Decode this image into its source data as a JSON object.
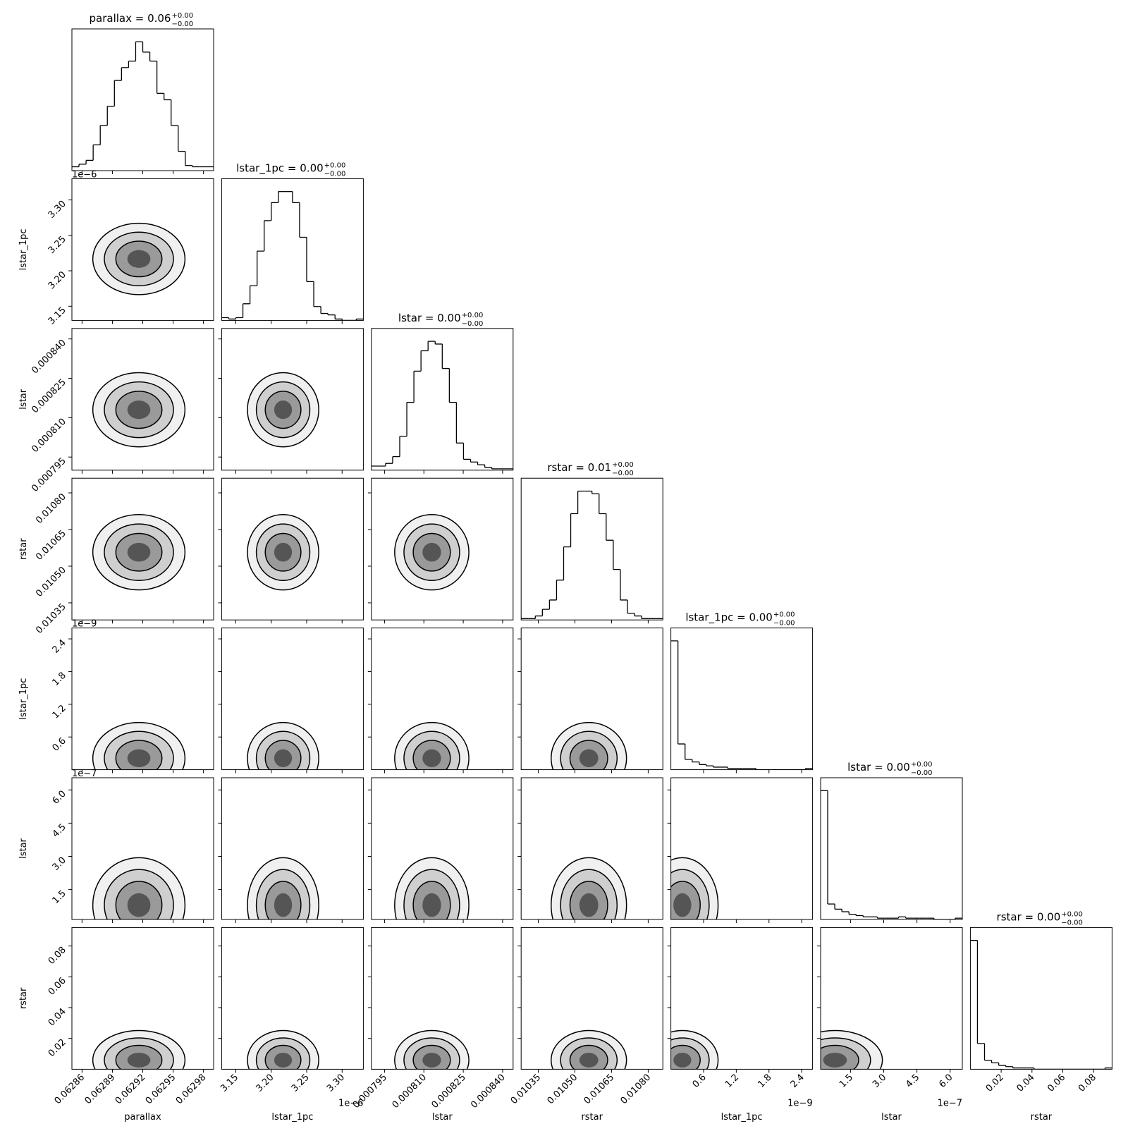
{
  "chart_data": {
    "type": "corner",
    "params": [
      {
        "title": "parallax = 0.06",
        "plus": "+0.00",
        "minus": "−0.00",
        "label": "parallax",
        "xlim": [
          0.06285,
          0.06299
        ],
        "ticks": [
          0.06286,
          0.06289,
          0.06292,
          0.06295,
          0.06298
        ],
        "bins": [
          0.06285,
          0.062857,
          0.062864,
          0.062871,
          0.062878,
          0.062885,
          0.062892,
          0.062899,
          0.062906,
          0.062913,
          0.06292,
          0.062927,
          0.062934,
          0.062941,
          0.062948,
          0.062955,
          0.062962,
          0.062969,
          0.062976,
          0.062983,
          0.06299
        ],
        "counts": [
          3,
          5,
          8,
          20,
          35,
          50,
          70,
          80,
          85,
          100,
          92,
          85,
          60,
          55,
          35,
          15,
          4,
          3,
          3,
          3
        ]
      },
      {
        "title": "lstar_1pc = 0.00",
        "plus": "+0.00",
        "minus": "−0.00",
        "label": "lstar_1pc",
        "offset": "1e−6",
        "xlim": [
          3.13,
          3.33
        ],
        "ticks": [
          3.15,
          {
            "value": 3.2,
            "label": "3.20"
          },
          3.25,
          {
            "value": 3.3,
            "label": "3.30"
          }
        ],
        "bins": [
          3.13,
          3.14,
          3.15,
          3.16,
          3.17,
          3.18,
          3.19,
          3.2,
          3.21,
          3.22,
          3.23,
          3.24,
          3.25,
          3.26,
          3.27,
          3.28,
          3.29,
          3.3,
          3.31,
          3.32,
          3.33
        ],
        "counts": [
          2,
          1,
          2,
          12,
          25,
          50,
          72,
          85,
          93,
          93,
          85,
          60,
          28,
          10,
          5,
          4,
          1,
          0,
          0,
          1
        ]
      },
      {
        "title": "lstar = 0.00",
        "plus": "+0.00",
        "minus": "−0.00",
        "label": "lstar",
        "xlim": [
          0.00079,
          0.000844
        ],
        "ticks": [
          0.000795,
          {
            "value": 0.00081,
            "label": "0.000810"
          },
          0.000825,
          {
            "value": 0.00084,
            "label": "0.000840"
          }
        ],
        "bins": [
          0.00079,
          0.0007927,
          0.0007954,
          0.0007981,
          0.0008008,
          0.0008035,
          0.0008062,
          0.0008089,
          0.0008116,
          0.0008143,
          0.000817,
          0.0008197,
          0.0008224,
          0.0008251,
          0.0008278,
          0.0008305,
          0.0008332,
          0.0008359,
          0.0008386,
          0.0008413,
          0.000844
        ],
        "counts": [
          3,
          3,
          5,
          10,
          25,
          50,
          73,
          88,
          95,
          93,
          75,
          50,
          20,
          8,
          6,
          4,
          2,
          1,
          1,
          1
        ]
      },
      {
        "title": "rstar = 0.01",
        "plus": "+0.00",
        "minus": "−0.00",
        "label": "rstar",
        "xlim": [
          0.01028,
          0.01086
        ],
        "ticks": [
          0.01035,
          {
            "value": 0.0105,
            "label": "0.01050"
          },
          0.01065,
          {
            "value": 0.0108,
            "label": "0.01080"
          }
        ],
        "bins": [
          0.01028,
          0.010309,
          0.010338,
          0.010367,
          0.010396,
          0.010425,
          0.010454,
          0.010483,
          0.010512,
          0.010541,
          0.01057,
          0.010599,
          0.010628,
          0.010657,
          0.010686,
          0.010715,
          0.010744,
          0.010773,
          0.010802,
          0.010831,
          0.01086
        ],
        "counts": [
          1,
          1,
          3,
          8,
          15,
          30,
          55,
          80,
          97,
          97,
          95,
          80,
          60,
          38,
          15,
          5,
          3,
          1,
          1,
          1
        ]
      },
      {
        "title": "lstar_1pc = 0.00",
        "plus": "+0.00",
        "minus": "−0.00",
        "label": "lstar_1pc",
        "offset": "1e−9",
        "xlim": [
          0,
          2.6
        ],
        "ticks": [
          0.6,
          1.2,
          1.8,
          2.4
        ],
        "bins": [
          0,
          0.13,
          0.26,
          0.39,
          0.52,
          0.65,
          0.78,
          0.91,
          1.04,
          1.17,
          1.3,
          1.43,
          1.56,
          1.69,
          1.82,
          1.95,
          2.08,
          2.21,
          2.34,
          2.47,
          2.6
        ],
        "counts": [
          100,
          20,
          8,
          6,
          4,
          3,
          2,
          2,
          1,
          1,
          1,
          1,
          0,
          0,
          0,
          0,
          0,
          0,
          0,
          1
        ]
      },
      {
        "title": "lstar = 0.00",
        "plus": "+0.00",
        "minus": "−0.00",
        "label": "lstar",
        "offset": "1e−7",
        "xlim": [
          0.15,
          6.55
        ],
        "ticks": [
          1.5,
          {
            "value": 3,
            "label": "3.0"
          },
          4.5,
          {
            "value": 6,
            "label": "6.0"
          }
        ],
        "bins": [
          0.15,
          0.47,
          0.79,
          1.11,
          1.43,
          1.75,
          2.07,
          2.39,
          2.71,
          3.03,
          3.35,
          3.67,
          3.99,
          4.31,
          4.63,
          4.95,
          5.27,
          5.59,
          5.91,
          6.23,
          6.55
        ],
        "counts": [
          100,
          12,
          8,
          6,
          4,
          3,
          2,
          2,
          1,
          1,
          1,
          2,
          1,
          1,
          1,
          1,
          0,
          0,
          0,
          1
        ]
      },
      {
        "title": "rstar = 0.00",
        "plus": "+0.00",
        "minus": "−0.00",
        "label": "rstar",
        "xlim": [
          0,
          0.092
        ],
        "ticks": [
          0.02,
          0.04,
          0.06,
          0.08
        ],
        "bins": [
          0,
          0.0046,
          0.0092,
          0.0138,
          0.0184,
          0.023,
          0.0276,
          0.0322,
          0.0368,
          0.0414,
          0.046,
          0.0506,
          0.0552,
          0.0598,
          0.0644,
          0.069,
          0.0736,
          0.0782,
          0.0828,
          0.0874,
          0.092
        ],
        "counts": [
          100,
          20,
          7,
          5,
          3,
          2,
          1,
          1,
          1,
          0,
          0,
          0,
          0,
          0,
          0,
          0,
          0,
          0,
          0,
          1
        ]
      }
    ]
  }
}
